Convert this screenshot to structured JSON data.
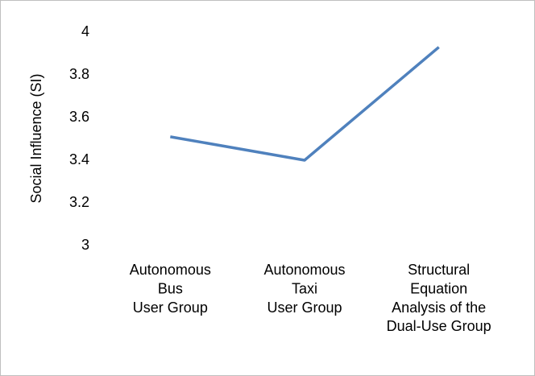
{
  "chart_data": {
    "type": "line",
    "y_label": "Social Influence (SI)",
    "categories": [
      "Autonomous\nBus\nUser Group",
      "Autonomous\nTaxi\nUser Group",
      "Structural\nEquation\nAnalysis of the\nDual-Use Group"
    ],
    "series": [
      {
        "name": "Social Influence",
        "color": "#4f81bd",
        "values": [
          3.51,
          3.4,
          3.93
        ]
      }
    ],
    "ylim": [
      3,
      4
    ],
    "yticks": [
      3,
      3.2,
      3.4,
      3.6,
      3.8,
      4
    ],
    "grid": false,
    "legend": false
  }
}
